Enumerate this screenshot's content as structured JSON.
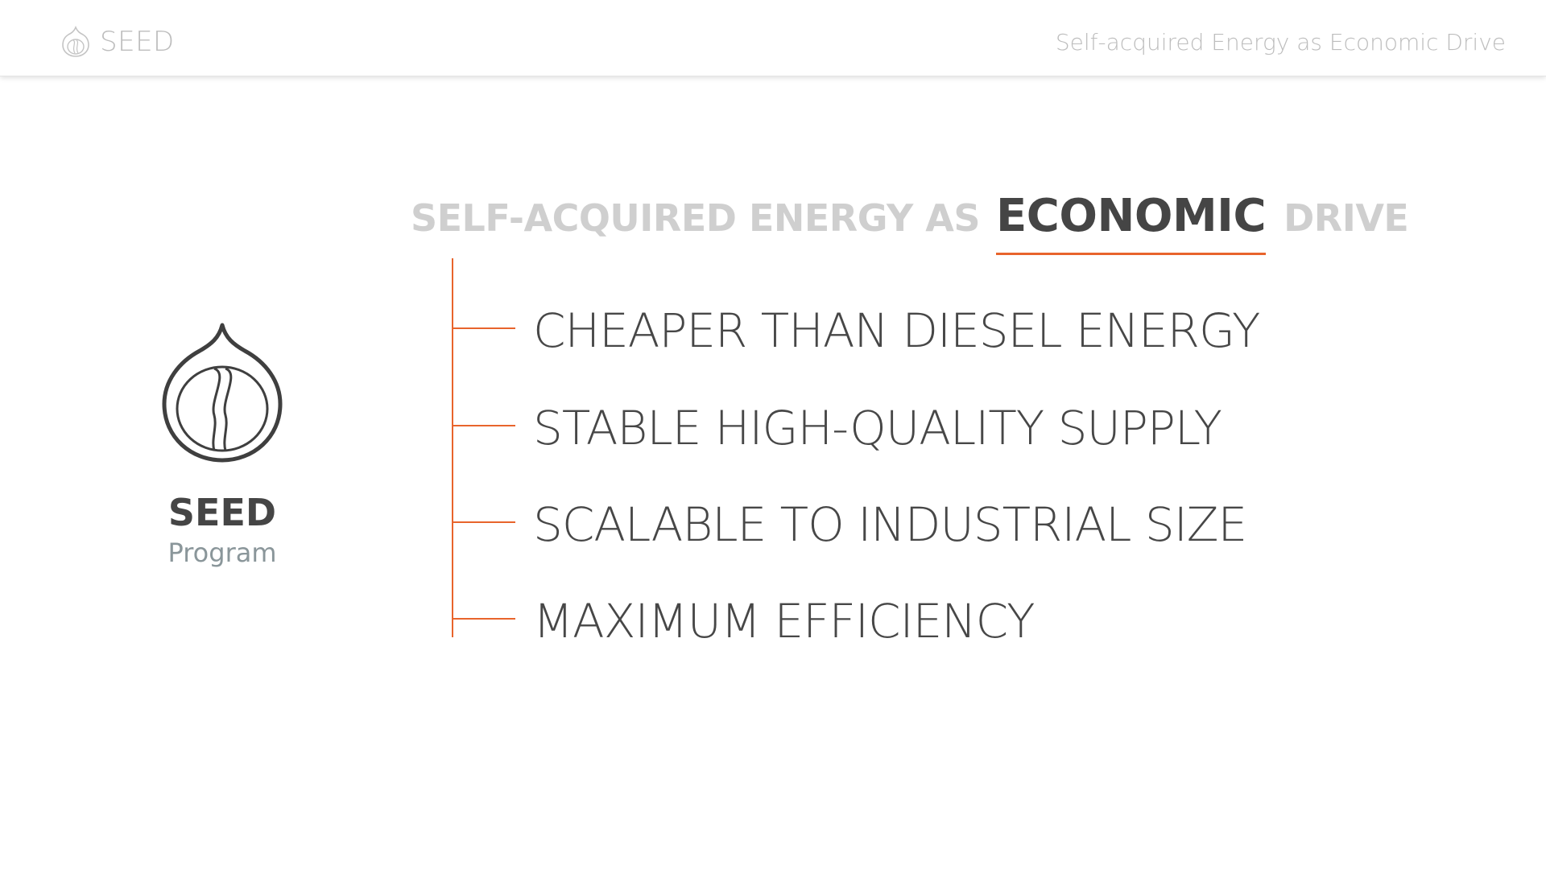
{
  "header": {
    "brand_icon": "seed-icon",
    "brand_name": "SEED",
    "subtitle": "Self-acquired Energy as Economic Drive"
  },
  "title": {
    "prefix": "SELF-ACQUIRED ENERGY AS",
    "highlight": "ECONOMIC",
    "suffix": "DRIVE"
  },
  "logo": {
    "icon": "seed-icon",
    "name": "SEED",
    "subtitle": "Program"
  },
  "items": [
    {
      "label": "CHEAPER THAN DIESEL ENERGY"
    },
    {
      "label": "STABLE HIGH-QUALITY SUPPLY"
    },
    {
      "label": "SCALABLE TO INDUSTRIAL SIZE"
    },
    {
      "label": "MAXIMUM EFFICIENCY"
    }
  ],
  "colors": {
    "accent": "#e8642c",
    "dark_text": "#454545",
    "muted_text": "#cfcfcf",
    "header_text": "#bdbdbd",
    "sub_text": "#8a969a"
  }
}
